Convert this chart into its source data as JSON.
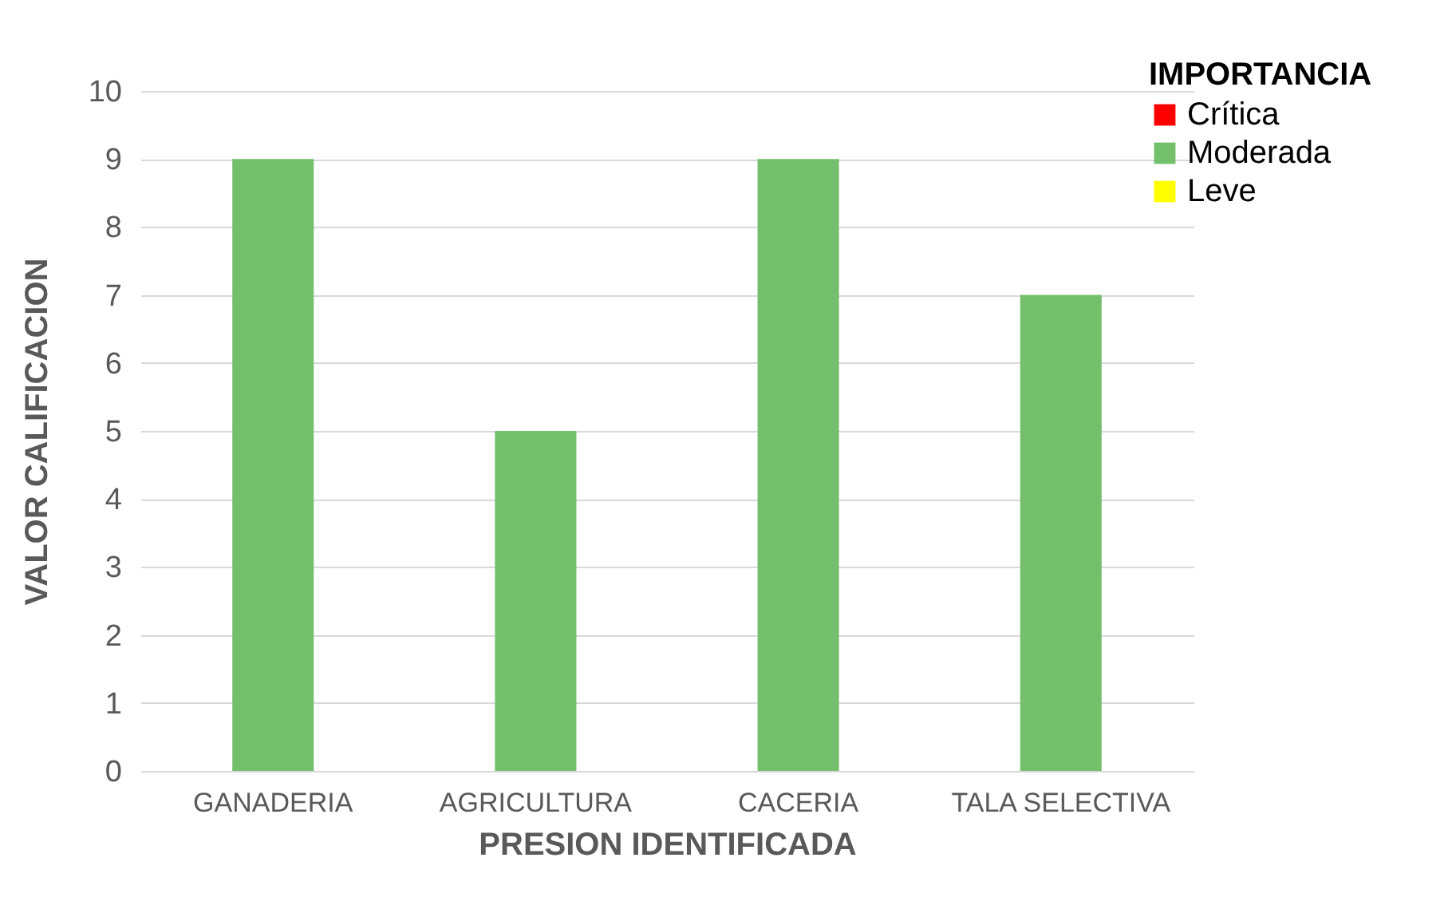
{
  "chart_data": {
    "type": "bar",
    "xlabel": "PRESION IDENTIFICADA",
    "ylabel": "VALOR CALIFICACION",
    "legend_title": "IMPORTANCIA",
    "categories": [
      "GANADERIA",
      "AGRICULTURA",
      "CACERIA",
      "TALA SELECTIVA"
    ],
    "series": [
      {
        "name": "Crítica",
        "color": "#ff0000",
        "values": [
          null,
          null,
          null,
          null
        ]
      },
      {
        "name": "Moderada",
        "color": "#73bf6c",
        "values": [
          9,
          5,
          9,
          7
        ]
      },
      {
        "name": "Leve",
        "color": "#ffff00",
        "values": [
          null,
          null,
          null,
          null
        ]
      }
    ],
    "ylim": [
      0,
      10
    ],
    "yticks": [
      0,
      1,
      2,
      3,
      4,
      5,
      6,
      7,
      8,
      9,
      10
    ],
    "grid": "y",
    "legend": "top right"
  }
}
